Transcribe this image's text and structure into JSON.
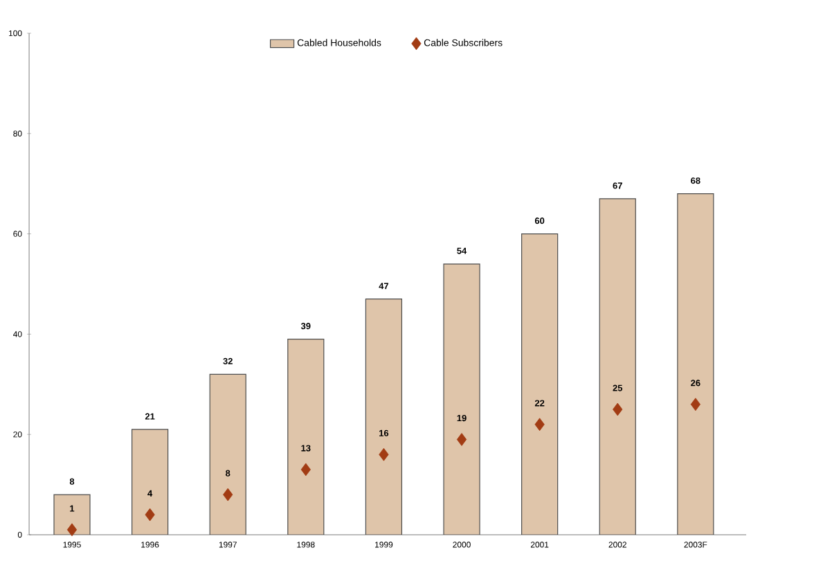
{
  "chart_data": {
    "type": "bar",
    "categories": [
      "1995",
      "1996",
      "1997",
      "1998",
      "1999",
      "2000",
      "2001",
      "2002",
      "2003F"
    ],
    "series": [
      {
        "name": "Cabled Households",
        "color": "#dfc5aa",
        "values": [
          8,
          21,
          32,
          39,
          47,
          54,
          60,
          67,
          68
        ]
      },
      {
        "name": "Cable Subscribers",
        "type": "scatter",
        "color": "#a23c14",
        "values": [
          1,
          4,
          8,
          13,
          16,
          19,
          22,
          25,
          26
        ]
      }
    ],
    "ylim": [
      0,
      100
    ],
    "yticks": [
      0,
      20,
      40,
      60,
      80,
      100
    ],
    "data_labels": true,
    "legend": "top",
    "grid": false,
    "marker": "diamond"
  }
}
